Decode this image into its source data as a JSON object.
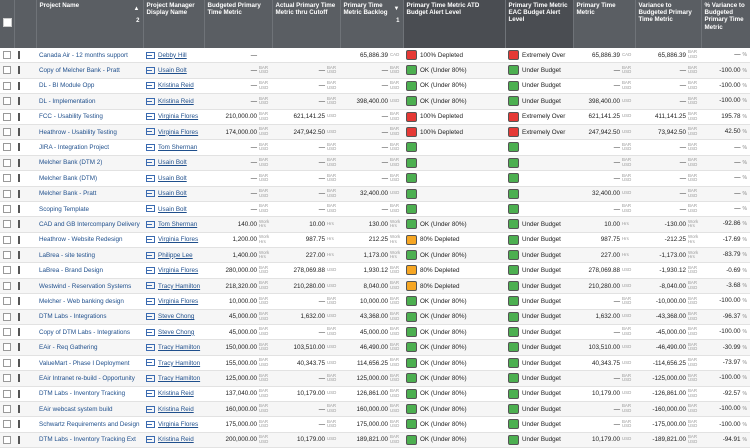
{
  "header": {
    "project_name": "Project Name",
    "sort_indicator": "▲",
    "sort_order": "2",
    "pm": "Project Manager Display Name",
    "budgeted": "Budgeted Primary Time Metric",
    "actual": "Actual Primary Time Metric thru Cutoff",
    "backlog": "Primary Time Metric Backlog",
    "backlog_sort": "1",
    "alert_atd": "Primary Time Metric ATD Budget Alert Level",
    "alert_eac": "Primary Time Metric EAC Budget Alert Level",
    "primary": "Primary Time Metric",
    "variance": "Variance to Budgeted Primary Time Metric",
    "pct_variance": "% Variance to Budgeted Primary Time Metric"
  },
  "rows": [
    {
      "project": "Canada Air - 12 months support",
      "pm": "Debby Hill",
      "pm_u": true,
      "budgeted": "—",
      "budgeted_unit": "",
      "actual": "",
      "actual_unit": "",
      "backlog": "65,886.39",
      "backlog_unit": "CAD",
      "atd": "100% Depleted",
      "atd_color": "r",
      "eac": "Extremely Over",
      "eac_color": "r",
      "primary": "65,886.39",
      "primary_unit": "CAD",
      "variance": "65,886.39",
      "variance_unit": "BAR USD",
      "pct": "—",
      "pct_unit": "%"
    },
    {
      "project": "Copy of Melcher Bank - Pratt",
      "pm": "Usain Bolt",
      "pm_u": true,
      "budgeted": "—",
      "budgeted_unit": "BAR USD",
      "actual": "—",
      "actual_unit": "BAR USD",
      "backlog": "—",
      "backlog_unit": "BAR USD",
      "atd": "OK (Under 80%)",
      "atd_color": "g",
      "eac": "Under Budget",
      "eac_color": "g",
      "primary": "—",
      "primary_unit": "BAR USD",
      "variance": "—",
      "variance_unit": "BAR USD",
      "pct": "-100.00",
      "pct_unit": "%"
    },
    {
      "project": "DL - BI Module Opp",
      "pm": "Kristina Reid",
      "pm_u": true,
      "budgeted": "—",
      "budgeted_unit": "BAR USD",
      "actual": "—",
      "actual_unit": "BAR USD",
      "backlog": "—",
      "backlog_unit": "BAR USD",
      "atd": "OK (Under 80%)",
      "atd_color": "g",
      "eac": "Under Budget",
      "eac_color": "g",
      "primary": "—",
      "primary_unit": "BAR USD",
      "variance": "—",
      "variance_unit": "BAR USD",
      "pct": "-100.00",
      "pct_unit": "%"
    },
    {
      "project": "DL - Implementation",
      "pm": "Kristina Reid",
      "pm_u": true,
      "budgeted": "—",
      "budgeted_unit": "BAR USD",
      "actual": "—",
      "actual_unit": "BAR USD",
      "backlog": "398,400.00",
      "backlog_unit": "USD",
      "atd": "OK (Under 80%)",
      "atd_color": "g",
      "eac": "Under Budget",
      "eac_color": "g",
      "primary": "398,400.00",
      "primary_unit": "USD",
      "variance": "—",
      "variance_unit": "BAR USD",
      "pct": "-100.00",
      "pct_unit": "%"
    },
    {
      "project": "FCC - Usability Testing",
      "pm": "Virginia Flores",
      "pm_u": true,
      "budgeted": "210,000.00",
      "budgeted_unit": "BAR USD",
      "actual": "621,141.25",
      "actual_unit": "USD",
      "backlog": "—",
      "backlog_unit": "BAR USD",
      "atd": "100% Depleted",
      "atd_color": "r",
      "eac": "Extremely Over",
      "eac_color": "r",
      "primary": "621,141.25",
      "primary_unit": "USD",
      "variance": "411,141.25",
      "variance_unit": "BAR USD",
      "pct": "195.78",
      "pct_unit": "%"
    },
    {
      "project": "Heathrow - Usability Testing",
      "pm": "Virginia Flores",
      "pm_u": true,
      "budgeted": "174,000.00",
      "budgeted_unit": "BAR USD",
      "actual": "247,942.50",
      "actual_unit": "USD",
      "backlog": "—",
      "backlog_unit": "BAR USD",
      "atd": "100% Depleted",
      "atd_color": "r",
      "eac": "Extremely Over",
      "eac_color": "r",
      "primary": "247,942.50",
      "primary_unit": "USD",
      "variance": "73,942.50",
      "variance_unit": "BAR USD",
      "pct": "42.50",
      "pct_unit": "%"
    },
    {
      "project": "JIRA - Integration Project",
      "pm": "Tom Sherman",
      "pm_u": true,
      "budgeted": "—",
      "budgeted_unit": "BAR USD",
      "actual": "—",
      "actual_unit": "BAR USD",
      "backlog": "—",
      "backlog_unit": "BAR USD",
      "atd": "",
      "atd_color": "g",
      "eac": "",
      "eac_color": "g",
      "primary": "—",
      "primary_unit": "BAR USD",
      "variance": "—",
      "variance_unit": "BAR USD",
      "pct": "—",
      "pct_unit": "%"
    },
    {
      "project": "Melcher Bank (DTM 2)",
      "pm": "Usain Bolt",
      "pm_u": true,
      "budgeted": "—",
      "budgeted_unit": "BAR USD",
      "actual": "—",
      "actual_unit": "BAR USD",
      "backlog": "—",
      "backlog_unit": "BAR USD",
      "atd": "",
      "atd_color": "g",
      "eac": "",
      "eac_color": "g",
      "primary": "—",
      "primary_unit": "BAR USD",
      "variance": "—",
      "variance_unit": "BAR USD",
      "pct": "—",
      "pct_unit": "%"
    },
    {
      "project": "Melcher Bank (DTM)",
      "pm": "Usain Bolt",
      "pm_u": true,
      "budgeted": "—",
      "budgeted_unit": "BAR USD",
      "actual": "—",
      "actual_unit": "BAR USD",
      "backlog": "—",
      "backlog_unit": "BAR USD",
      "atd": "",
      "atd_color": "g",
      "eac": "",
      "eac_color": "g",
      "primary": "—",
      "primary_unit": "BAR USD",
      "variance": "—",
      "variance_unit": "BAR USD",
      "pct": "—",
      "pct_unit": "%"
    },
    {
      "project": "Melcher Bank - Pratt",
      "pm": "Usain Bolt",
      "pm_u": true,
      "budgeted": "—",
      "budgeted_unit": "BAR USD",
      "actual": "—",
      "actual_unit": "BAR USD",
      "backlog": "32,400.00",
      "backlog_unit": "USD",
      "atd": "",
      "atd_color": "g",
      "eac": "",
      "eac_color": "g",
      "primary": "32,400.00",
      "primary_unit": "USD",
      "variance": "—",
      "variance_unit": "BAR USD",
      "pct": "—",
      "pct_unit": "%"
    },
    {
      "project": "Scoping Template",
      "pm": "Usain Bolt",
      "pm_u": true,
      "budgeted": "—",
      "budgeted_unit": "BAR USD",
      "actual": "—",
      "actual_unit": "BAR USD",
      "backlog": "—",
      "backlog_unit": "BAR USD",
      "atd": "",
      "atd_color": "g",
      "eac": "",
      "eac_color": "g",
      "primary": "—",
      "primary_unit": "BAR USD",
      "variance": "—",
      "variance_unit": "BAR USD",
      "pct": "—",
      "pct_unit": "%"
    },
    {
      "project": "CAD and GB Intercompany Delivery",
      "pm": "Tom Sherman",
      "pm_u": true,
      "budgeted": "140.00",
      "budgeted_unit": "Work Hrs",
      "actual": "10.00",
      "actual_unit": "Hrs",
      "backlog": "130.00",
      "backlog_unit": "Work Hrs",
      "atd": "OK (Under 80%)",
      "atd_color": "g",
      "eac": "Under Budget",
      "eac_color": "g",
      "primary": "10.00",
      "primary_unit": "Hrs",
      "variance": "-130.00",
      "variance_unit": "Work Hrs",
      "pct": "-92.86",
      "pct_unit": "%"
    },
    {
      "project": "Heathrow - Website Redesign",
      "pm": "Virginia Flores",
      "pm_u": true,
      "budgeted": "1,200.00",
      "budgeted_unit": "Work Hrs",
      "actual": "987.75",
      "actual_unit": "Hrs",
      "backlog": "212.25",
      "backlog_unit": "Work Hrs",
      "atd": "80% Depleted",
      "atd_color": "o",
      "eac": "Under Budget",
      "eac_color": "g",
      "primary": "987.75",
      "primary_unit": "Hrs",
      "variance": "-212.25",
      "variance_unit": "Work Hrs",
      "pct": "-17.69",
      "pct_unit": "%"
    },
    {
      "project": "LaBrea - site testing",
      "pm": "Philippe Lee",
      "pm_u": true,
      "budgeted": "1,400.00",
      "budgeted_unit": "Work Hrs",
      "actual": "227.00",
      "actual_unit": "Hrs",
      "backlog": "1,173.00",
      "backlog_unit": "Work Hrs",
      "atd": "OK (Under 80%)",
      "atd_color": "g",
      "eac": "Under Budget",
      "eac_color": "g",
      "primary": "227.00",
      "primary_unit": "Hrs",
      "variance": "-1,173.00",
      "variance_unit": "Work Hrs",
      "pct": "-83.79",
      "pct_unit": "%"
    },
    {
      "project": "LaBrea - Brand Design",
      "pm": "Virginia Flores",
      "pm_u": true,
      "budgeted": "280,000.00",
      "budgeted_unit": "BAR USD",
      "actual": "278,069.88",
      "actual_unit": "USD",
      "backlog": "1,930.12",
      "backlog_unit": "BAR USD",
      "atd": "80% Depleted",
      "atd_color": "o",
      "eac": "Under Budget",
      "eac_color": "g",
      "primary": "278,069.88",
      "primary_unit": "USD",
      "variance": "-1,930.12",
      "variance_unit": "BAR USD",
      "pct": "-0.69",
      "pct_unit": "%"
    },
    {
      "project": "Westwind - Reservation Systems",
      "pm": "Tracy Hamilton",
      "pm_u": true,
      "budgeted": "218,320.00",
      "budgeted_unit": "BAR USD",
      "actual": "210,280.00",
      "actual_unit": "USD",
      "backlog": "8,040.00",
      "backlog_unit": "BAR USD",
      "atd": "80% Depleted",
      "atd_color": "o",
      "eac": "Under Budget",
      "eac_color": "g",
      "primary": "210,280.00",
      "primary_unit": "USD",
      "variance": "-8,040.00",
      "variance_unit": "BAR USD",
      "pct": "-3.68",
      "pct_unit": "%"
    },
    {
      "project": "Melcher - Web banking design",
      "pm": "Virginia Flores",
      "pm_u": true,
      "budgeted": "10,000.00",
      "budgeted_unit": "BAR USD",
      "actual": "—",
      "actual_unit": "BAR USD",
      "backlog": "10,000.00",
      "backlog_unit": "BAR USD",
      "atd": "OK (Under 80%)",
      "atd_color": "g",
      "eac": "Under Budget",
      "eac_color": "g",
      "primary": "—",
      "primary_unit": "BAR USD",
      "variance": "-10,000.00",
      "variance_unit": "BAR USD",
      "pct": "-100.00",
      "pct_unit": "%"
    },
    {
      "project": "DTM Labs - Integrations",
      "pm": "Steve Chong",
      "pm_u": true,
      "budgeted": "45,000.00",
      "budgeted_unit": "BAR USD",
      "actual": "1,632.00",
      "actual_unit": "USD",
      "backlog": "43,368.00",
      "backlog_unit": "BAR USD",
      "atd": "OK (Under 80%)",
      "atd_color": "g",
      "eac": "Under Budget",
      "eac_color": "g",
      "primary": "1,632.00",
      "primary_unit": "USD",
      "variance": "-43,368.00",
      "variance_unit": "BAR USD",
      "pct": "-96.37",
      "pct_unit": "%"
    },
    {
      "project": "Copy of DTM Labs - Integrations",
      "pm": "Steve Chong",
      "pm_u": true,
      "budgeted": "45,000.00",
      "budgeted_unit": "BAR USD",
      "actual": "—",
      "actual_unit": "BAR USD",
      "backlog": "45,000.00",
      "backlog_unit": "BAR USD",
      "atd": "OK (Under 80%)",
      "atd_color": "g",
      "eac": "Under Budget",
      "eac_color": "g",
      "primary": "—",
      "primary_unit": "BAR USD",
      "variance": "-45,000.00",
      "variance_unit": "BAR USD",
      "pct": "-100.00",
      "pct_unit": "%"
    },
    {
      "project": "EAir - Req Gathering",
      "pm": "Tracy Hamilton",
      "pm_u": true,
      "budgeted": "150,000.00",
      "budgeted_unit": "BAR USD",
      "actual": "103,510.00",
      "actual_unit": "USD",
      "backlog": "46,490.00",
      "backlog_unit": "BAR USD",
      "atd": "OK (Under 80%)",
      "atd_color": "g",
      "eac": "Under Budget",
      "eac_color": "g",
      "primary": "103,510.00",
      "primary_unit": "USD",
      "variance": "-46,490.00",
      "variance_unit": "BAR USD",
      "pct": "-30.99",
      "pct_unit": "%"
    },
    {
      "project": "ValueMart - Phase I Deployment",
      "pm": "Tracy Hamilton",
      "pm_u": true,
      "budgeted": "155,000.00",
      "budgeted_unit": "BAR USD",
      "actual": "40,343.75",
      "actual_unit": "USD",
      "backlog": "114,656.25",
      "backlog_unit": "BAR USD",
      "atd": "OK (Under 80%)",
      "atd_color": "g",
      "eac": "Under Budget",
      "eac_color": "g",
      "primary": "40,343.75",
      "primary_unit": "USD",
      "variance": "-114,656.25",
      "variance_unit": "BAR USD",
      "pct": "-73.97",
      "pct_unit": "%"
    },
    {
      "project": "EAir Intranet re-build - Opportunity",
      "pm": "Tracy Hamilton",
      "pm_u": true,
      "budgeted": "125,000.00",
      "budgeted_unit": "BAR USD",
      "actual": "—",
      "actual_unit": "BAR USD",
      "backlog": "125,000.00",
      "backlog_unit": "BAR USD",
      "atd": "OK (Under 80%)",
      "atd_color": "g",
      "eac": "Under Budget",
      "eac_color": "g",
      "primary": "—",
      "primary_unit": "BAR USD",
      "variance": "-125,000.00",
      "variance_unit": "BAR USD",
      "pct": "-100.00",
      "pct_unit": "%"
    },
    {
      "project": "DTM Labs - Inventory Tracking",
      "pm": "Kristina Reid",
      "pm_u": true,
      "budgeted": "137,040.00",
      "budgeted_unit": "BAR USD",
      "actual": "10,179.00",
      "actual_unit": "USD",
      "backlog": "126,861.00",
      "backlog_unit": "BAR USD",
      "atd": "OK (Under 80%)",
      "atd_color": "g",
      "eac": "Under Budget",
      "eac_color": "g",
      "primary": "10,179.00",
      "primary_unit": "USD",
      "variance": "-126,861.00",
      "variance_unit": "BAR USD",
      "pct": "-92.57",
      "pct_unit": "%"
    },
    {
      "project": "EAir webcast system build",
      "pm": "Kristina Reid",
      "pm_u": true,
      "budgeted": "160,000.00",
      "budgeted_unit": "BAR USD",
      "actual": "—",
      "actual_unit": "BAR USD",
      "backlog": "160,000.00",
      "backlog_unit": "BAR USD",
      "atd": "OK (Under 80%)",
      "atd_color": "g",
      "eac": "Under Budget",
      "eac_color": "g",
      "primary": "—",
      "primary_unit": "BAR USD",
      "variance": "-160,000.00",
      "variance_unit": "BAR USD",
      "pct": "-100.00",
      "pct_unit": "%"
    },
    {
      "project": "Schwartz Requirements and Design",
      "pm": "Virginia Flores",
      "pm_u": true,
      "budgeted": "175,000.00",
      "budgeted_unit": "BAR USD",
      "actual": "—",
      "actual_unit": "BAR USD",
      "backlog": "175,000.00",
      "backlog_unit": "BAR USD",
      "atd": "OK (Under 80%)",
      "atd_color": "g",
      "eac": "Under Budget",
      "eac_color": "g",
      "primary": "—",
      "primary_unit": "BAR USD",
      "variance": "-175,000.00",
      "variance_unit": "BAR USD",
      "pct": "-100.00",
      "pct_unit": "%"
    },
    {
      "project": "DTM Labs - Inventory Tracking Ext",
      "pm": "Kristina Reid",
      "pm_u": true,
      "budgeted": "200,000.00",
      "budgeted_unit": "BAR USD",
      "actual": "10,179.00",
      "actual_unit": "USD",
      "backlog": "189,821.00",
      "backlog_unit": "BAR USD",
      "atd": "OK (Under 80%)",
      "atd_color": "g",
      "eac": "Under Budget",
      "eac_color": "g",
      "primary": "10,179.00",
      "primary_unit": "USD",
      "variance": "-189,821.00",
      "variance_unit": "BAR USD",
      "pct": "-94.91",
      "pct_unit": "%"
    }
  ],
  "colors": {
    "header": "#5a5e63",
    "ok": "#4caf50",
    "over": "#e53935",
    "warn": "#f6a623",
    "link": "#1f4f8c"
  },
  "icons": {
    "select": "checkbox",
    "pin": "pin-icon",
    "manager": "mail-icon",
    "alert": "status-swatch"
  }
}
